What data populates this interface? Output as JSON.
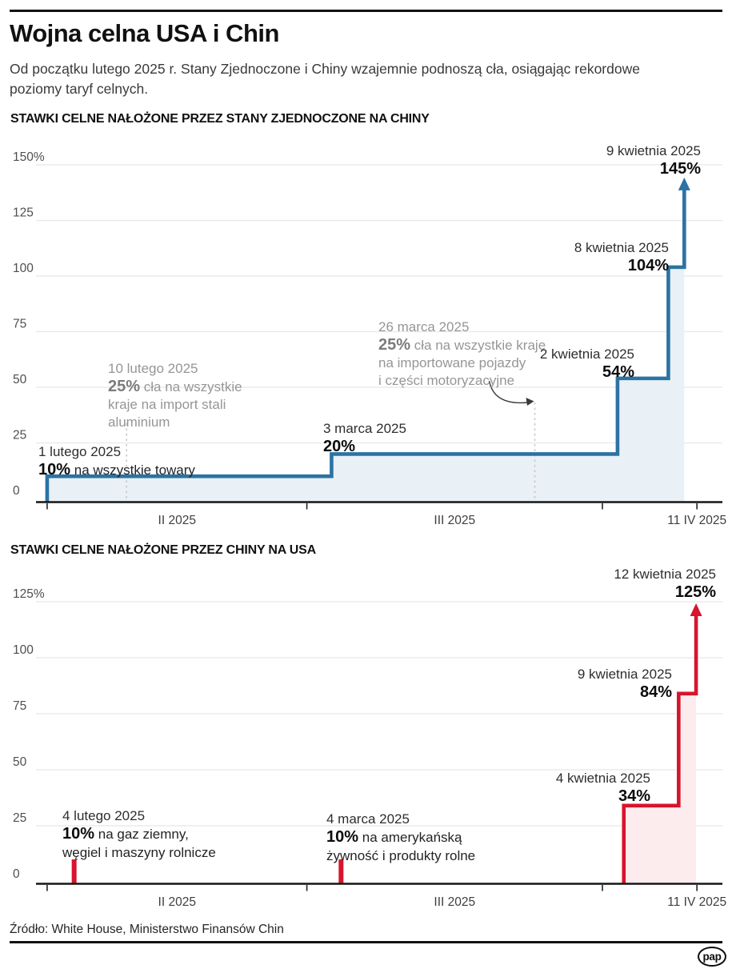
{
  "header": {
    "title": "Wojna celna USA i Chin",
    "subtitle_lines": [
      "Od początku lutego 2025 r. Stany Zjednoczone i Chiny wzajemnie podnoszą cła, osiągając rekordowe",
      "poziomy taryf celnych."
    ]
  },
  "footer": {
    "source": "Źródło: White House, Ministerstwo Finansów Chin",
    "logo_text": "pap"
  },
  "colors": {
    "us_line": "#2b73a3",
    "us_fill": "#e9f0f6",
    "cn_line": "#d7142d",
    "cn_fill": "#fcecee",
    "grid": "#e8e8e8",
    "axis": "#161616",
    "dashed": "#c6c6c6",
    "ytick_text": "#4f4f4f",
    "xtick_text": "#3e3e3e",
    "curve_arrow": "#3a3a3a"
  },
  "chart_data": [
    {
      "type": "line",
      "subtype": "step",
      "title": "STAWKI CELNE NAŁOŻONE PRZEZ STANY ZJEDNOCZONE NA CHINY",
      "series_name": "US tariff rate on China",
      "unit": "%",
      "ylim": [
        0,
        150
      ],
      "grid": true,
      "yticks": [
        {
          "v": 0,
          "label": "0"
        },
        {
          "v": 25,
          "label": "25"
        },
        {
          "v": 50,
          "label": "50"
        },
        {
          "v": 75,
          "label": "75"
        },
        {
          "v": 100,
          "label": "100"
        },
        {
          "v": 125,
          "label": "125"
        },
        {
          "v": 150,
          "label": "150%"
        }
      ],
      "x_domain": [
        "2025-01-31",
        "2025-04-13"
      ],
      "x_ticks": [
        "2025-02-01",
        "2025-03-01",
        "2025-04-01",
        "2025-04-11"
      ],
      "x_labels": [
        {
          "label": "II 2025",
          "span": [
            "2025-02-01",
            "2025-03-01"
          ]
        },
        {
          "label": "III 2025",
          "span": [
            "2025-03-01",
            "2025-04-01"
          ]
        },
        {
          "label": "11 IV 2025",
          "at": "2025-04-11"
        }
      ],
      "steps": [
        {
          "date": "2025-02-01",
          "value": 10
        },
        {
          "date": "2025-03-03",
          "value": 20
        },
        {
          "date": "2025-04-02",
          "value": 54
        },
        {
          "date": "2025-04-08",
          "value": 104
        }
      ],
      "arrow": {
        "date": "2025-04-09",
        "value": 145
      },
      "annotations": [
        {
          "id": "a1",
          "date_label": "1 lutego 2025",
          "value_label": "10%",
          "desc_lines": [
            "na wszystkie towary"
          ],
          "muted": false
        },
        {
          "id": "a2",
          "date_label": "10 lutego 2025",
          "value_label": "25%",
          "desc_lines": [
            "cła na wszystkie",
            "kraje na import stali",
            "aluminium"
          ],
          "muted": true,
          "marker_date": "2025-02-10"
        },
        {
          "id": "a3",
          "date_label": "3 marca 2025",
          "value_label": "20%",
          "desc_lines": [],
          "muted": false
        },
        {
          "id": "a4",
          "date_label": "26 marca 2025",
          "value_label": "25%",
          "desc_lines": [
            "cła na wszystkie kraje",
            "na importowane pojazdy",
            "i części motoryzacyjne"
          ],
          "muted": true,
          "marker_date": "2025-03-26",
          "arrow_to_marker": true
        },
        {
          "id": "a5",
          "date_label": "2 kwietnia 2025",
          "value_label": "54%",
          "desc_lines": [],
          "muted": false
        },
        {
          "id": "a6",
          "date_label": "8 kwietnia 2025",
          "value_label": "104%",
          "desc_lines": [],
          "muted": false
        },
        {
          "id": "a7",
          "date_label": "9 kwietnia 2025",
          "value_label": "145%",
          "desc_lines": [],
          "muted": false
        }
      ]
    },
    {
      "type": "line",
      "subtype": "step",
      "title": "STAWKI CELNE NAŁOŻONE PRZEZ CHINY NA USA",
      "series_name": "China tariff rate on USA",
      "unit": "%",
      "ylim": [
        0,
        125
      ],
      "grid": true,
      "yticks": [
        {
          "v": 0,
          "label": "0"
        },
        {
          "v": 25,
          "label": "25"
        },
        {
          "v": 50,
          "label": "50"
        },
        {
          "v": 75,
          "label": "75"
        },
        {
          "v": 100,
          "label": "100"
        },
        {
          "v": 125,
          "label": "125%"
        }
      ],
      "x_domain": [
        "2025-01-31",
        "2025-04-13"
      ],
      "x_ticks": [
        "2025-02-01",
        "2025-03-01",
        "2025-04-01",
        "2025-04-11"
      ],
      "x_labels": [
        {
          "label": "II 2025",
          "span": [
            "2025-02-01",
            "2025-03-01"
          ]
        },
        {
          "label": "III 2025",
          "span": [
            "2025-03-01",
            "2025-04-01"
          ]
        },
        {
          "label": "11 IV 2025",
          "at": "2025-04-11"
        }
      ],
      "spikes": [
        {
          "date": "2025-02-04",
          "value": 10
        },
        {
          "date": "2025-03-04",
          "value": 10
        }
      ],
      "steps": [
        {
          "date": "2025-04-04",
          "value": 34
        },
        {
          "date": "2025-04-09",
          "value": 84
        }
      ],
      "arrow": {
        "date": "2025-04-12",
        "value": 125
      },
      "annotations": [
        {
          "id": "b1",
          "date_label": "4 lutego 2025",
          "value_label": "10%",
          "desc_lines": [
            "na gaz ziemny,",
            "węgiel i maszyny rolnicze"
          ],
          "muted": false
        },
        {
          "id": "b2",
          "date_label": "4 marca 2025",
          "value_label": "10%",
          "desc_lines": [
            "na amerykańską",
            "żywność i produkty rolne"
          ],
          "muted": false
        },
        {
          "id": "b3",
          "date_label": "4 kwietnia 2025",
          "value_label": "34%",
          "desc_lines": [],
          "muted": false
        },
        {
          "id": "b4",
          "date_label": "9 kwietnia 2025",
          "value_label": "84%",
          "desc_lines": [],
          "muted": false
        },
        {
          "id": "b5",
          "date_label": "12 kwietnia 2025",
          "value_label": "125%",
          "desc_lines": [],
          "muted": false
        }
      ]
    }
  ]
}
